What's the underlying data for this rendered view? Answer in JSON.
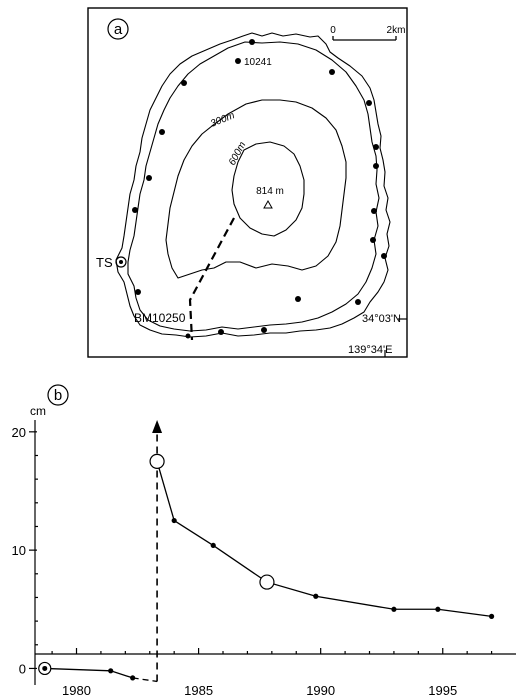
{
  "panel_a": {
    "letter": "a",
    "scale_zero": "0",
    "scale_end": "2km",
    "benchmark_north": "10241",
    "contour_300": "300m",
    "contour_600": "600m",
    "summit": "814 m",
    "station_ts": "TS",
    "benchmark_south": "BM10250",
    "latitude": "34°03'N",
    "longitude": "139°34'E"
  },
  "panel_b": {
    "letter": "b"
  },
  "chart_data": {
    "type": "line",
    "ylabel": "cm",
    "xlim": [
      1978.3,
      1998
    ],
    "ylim": [
      -1.4,
      21
    ],
    "x_ticks": [
      1980,
      1985,
      1990,
      1995
    ],
    "y_ticks": [
      0,
      10,
      20
    ],
    "series": [
      {
        "points": [
          {
            "x": 1978.7,
            "y": 0.0,
            "marker": "reference"
          },
          {
            "x": 1981.4,
            "y": -0.2,
            "marker": "dot"
          },
          {
            "x": 1982.3,
            "y": -0.8,
            "marker": "dot"
          },
          {
            "x": 1983.3,
            "y": 17.5,
            "marker": "open"
          },
          {
            "x": 1984.0,
            "y": 12.5,
            "marker": "dot"
          },
          {
            "x": 1985.6,
            "y": 10.4,
            "marker": "dot"
          },
          {
            "x": 1987.8,
            "y": 7.3,
            "marker": "open"
          },
          {
            "x": 1989.8,
            "y": 6.1,
            "marker": "dot"
          },
          {
            "x": 1993.0,
            "y": 5.0,
            "marker": "dot"
          },
          {
            "x": 1994.8,
            "y": 5.0,
            "marker": "dot"
          },
          {
            "x": 1997.0,
            "y": 4.4,
            "marker": "dot"
          }
        ]
      }
    ],
    "eruption_year": 1983.3,
    "arrow_top": 21
  }
}
